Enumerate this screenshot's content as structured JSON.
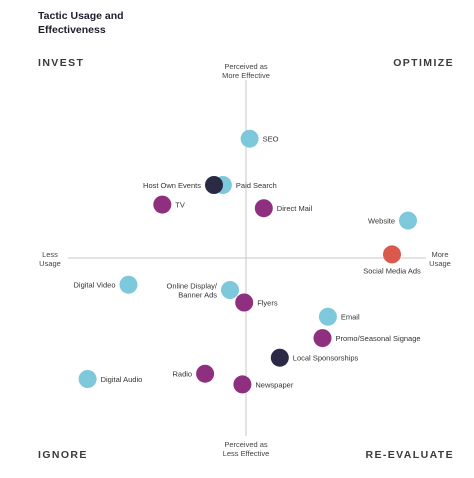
{
  "chart_data": {
    "type": "scatter",
    "title_lines": [
      "Tactic Usage and",
      "Effectiveness"
    ],
    "quadrants": {
      "top_left": "INVEST",
      "top_right": "OPTIMIZE",
      "bottom_left": "IGNORE",
      "bottom_right": "RE-EVALUATE"
    },
    "axis_labels": {
      "top": [
        "Perceived as",
        "More Effective"
      ],
      "bottom": [
        "Perceived as",
        "Less Effective"
      ],
      "left": [
        "Less",
        "Usage"
      ],
      "right": [
        "More",
        "Usage"
      ]
    },
    "xlim": [
      -1,
      1
    ],
    "ylim": [
      -1,
      1
    ],
    "colors": {
      "light_blue": "#7ec8dc",
      "purple": "#8e2f80",
      "navy": "#2a2a45",
      "red": "#d9594c"
    },
    "points": [
      {
        "label": "SEO",
        "x": 0.02,
        "y": 0.67,
        "color": "light_blue",
        "label_side": "right"
      },
      {
        "label": "Paid Search",
        "x": -0.13,
        "y": 0.41,
        "color": "light_blue",
        "label_side": "right"
      },
      {
        "label": "Host Own Events",
        "x": -0.18,
        "y": 0.41,
        "color": "navy",
        "label_side": "left"
      },
      {
        "label": "TV",
        "x": -0.47,
        "y": 0.3,
        "color": "purple",
        "label_side": "right"
      },
      {
        "label": "Direct Mail",
        "x": 0.1,
        "y": 0.28,
        "color": "purple",
        "label_side": "right"
      },
      {
        "label": "Website",
        "x": 0.91,
        "y": 0.21,
        "color": "light_blue",
        "label_side": "left"
      },
      {
        "label": "Social Media Ads",
        "x": 0.82,
        "y": 0.02,
        "color": "red",
        "label_side": "below"
      },
      {
        "label": "Digital Video",
        "x": -0.66,
        "y": -0.15,
        "color": "light_blue",
        "label_side": "left"
      },
      {
        "label": "Online Display/\nBanner Ads",
        "x": -0.09,
        "y": -0.18,
        "color": "light_blue",
        "label_side": "left"
      },
      {
        "label": "Flyers",
        "x": -0.01,
        "y": -0.25,
        "color": "purple",
        "label_side": "right"
      },
      {
        "label": "Email",
        "x": 0.46,
        "y": -0.33,
        "color": "light_blue",
        "label_side": "right"
      },
      {
        "label": "Promo/Seasonal Signage",
        "x": 0.43,
        "y": -0.45,
        "color": "purple",
        "label_side": "right"
      },
      {
        "label": "Local Sponsorships",
        "x": 0.19,
        "y": -0.56,
        "color": "navy",
        "label_side": "right"
      },
      {
        "label": "Radio",
        "x": -0.23,
        "y": -0.65,
        "color": "purple",
        "label_side": "left"
      },
      {
        "label": "Newspaper",
        "x": -0.02,
        "y": -0.71,
        "color": "purple",
        "label_side": "right"
      },
      {
        "label": "Digital Audio",
        "x": -0.89,
        "y": -0.68,
        "color": "light_blue",
        "label_side": "right"
      }
    ]
  }
}
